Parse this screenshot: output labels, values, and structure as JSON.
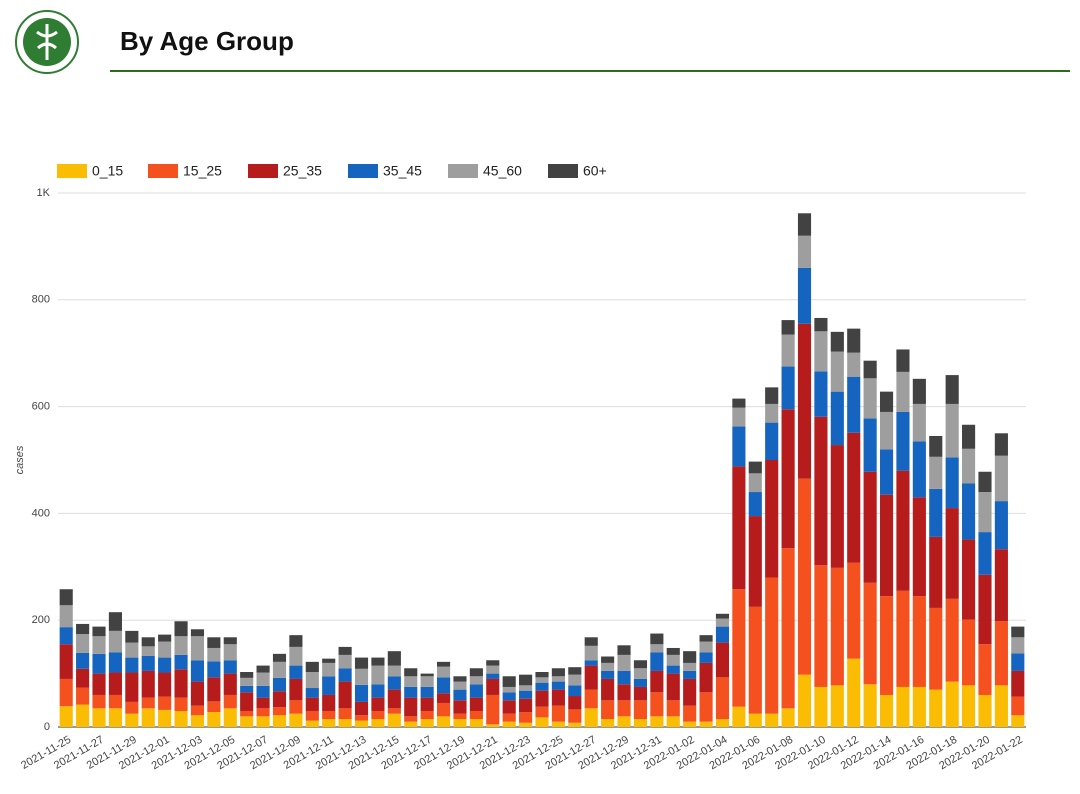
{
  "chart_data": {
    "type": "stacked_bar",
    "title": "By Age Group",
    "y_label": "cases",
    "categories": [
      "2021-11-25",
      null,
      "2021-11-27",
      null,
      "2021-11-29",
      null,
      "2021-12-01",
      null,
      "2021-12-03",
      null,
      "2021-12-05",
      null,
      "2021-12-07",
      null,
      "2021-12-09",
      null,
      "2021-12-11",
      null,
      "2021-12-13",
      null,
      "2021-12-15",
      null,
      "2021-12-17",
      null,
      "2021-12-19",
      null,
      "2021-12-21",
      null,
      "2021-12-23",
      null,
      "2021-12-25",
      null,
      "2021-12-27",
      null,
      "2021-12-29",
      null,
      "2021-12-31",
      null,
      "2022-01-02",
      null,
      "2022-01-04",
      null,
      "2022-01-06",
      null,
      "2022-01-08",
      null,
      "2022-01-10",
      null,
      "2022-01-12",
      null,
      "2022-01-14",
      null,
      "2022-01-16",
      null,
      "2022-01-18",
      null,
      "2022-01-20",
      null,
      "2022-01-22"
    ],
    "series": [
      {
        "name": "0_15",
        "color": "#fbbc04",
        "values": [
          39,
          42,
          35,
          35,
          25,
          35,
          32,
          30,
          22,
          28,
          35,
          20,
          20,
          22,
          25,
          12,
          15,
          15,
          12,
          15,
          25,
          10,
          15,
          20,
          15,
          15,
          5,
          10,
          8,
          18,
          10,
          8,
          35,
          15,
          20,
          15,
          20,
          20,
          10,
          10,
          15,
          38,
          25,
          25,
          35,
          98,
          75,
          78,
          128,
          80,
          60,
          75,
          75,
          70,
          85,
          78,
          60,
          78,
          22
        ]
      },
      {
        "name": "15_25",
        "color": "#f4511e",
        "values": [
          51,
          32,
          25,
          25,
          22,
          20,
          25,
          25,
          18,
          20,
          25,
          10,
          15,
          15,
          25,
          18,
          15,
          20,
          10,
          15,
          10,
          10,
          15,
          25,
          10,
          15,
          55,
          15,
          20,
          20,
          30,
          25,
          35,
          35,
          30,
          35,
          45,
          30,
          30,
          55,
          78,
          220,
          200,
          255,
          300,
          367,
          228,
          220,
          180,
          190,
          185,
          180,
          170,
          153,
          155,
          123,
          95,
          120,
          35
        ]
      },
      {
        "name": "25_35",
        "color": "#b71c1c",
        "values": [
          65,
          35,
          40,
          42,
          55,
          50,
          45,
          53,
          45,
          45,
          40,
          35,
          20,
          30,
          40,
          25,
          30,
          50,
          25,
          25,
          35,
          35,
          25,
          18,
          25,
          25,
          30,
          25,
          25,
          30,
          30,
          25,
          45,
          40,
          30,
          25,
          40,
          50,
          50,
          55,
          65,
          230,
          170,
          220,
          260,
          290,
          278,
          230,
          243,
          208,
          190,
          225,
          185,
          133,
          170,
          150,
          130,
          135,
          48
        ]
      },
      {
        "name": "35_45",
        "color": "#1565c0",
        "values": [
          32,
          30,
          37,
          38,
          28,
          28,
          28,
          27,
          40,
          30,
          25,
          12,
          22,
          25,
          25,
          18,
          35,
          25,
          32,
          25,
          25,
          20,
          20,
          30,
          20,
          25,
          10,
          15,
          15,
          15,
          15,
          20,
          10,
          15,
          25,
          15,
          35,
          15,
          15,
          20,
          30,
          75,
          45,
          70,
          80,
          105,
          85,
          100,
          105,
          100,
          85,
          110,
          105,
          90,
          95,
          105,
          80,
          90,
          33
        ]
      },
      {
        "name": "45_60",
        "color": "#9e9e9e",
        "values": [
          41,
          35,
          33,
          40,
          28,
          18,
          30,
          35,
          45,
          25,
          30,
          15,
          25,
          30,
          35,
          30,
          25,
          25,
          30,
          35,
          20,
          20,
          20,
          20,
          15,
          15,
          15,
          10,
          10,
          10,
          10,
          20,
          27,
          15,
          30,
          20,
          15,
          20,
          15,
          20,
          15,
          35,
          35,
          35,
          60,
          60,
          75,
          75,
          45,
          75,
          70,
          75,
          70,
          60,
          100,
          65,
          75,
          85,
          30
        ]
      },
      {
        "name": "60+",
        "color": "#424242",
        "values": [
          30,
          19,
          18,
          35,
          22,
          17,
          13,
          28,
          13,
          20,
          13,
          11,
          13,
          15,
          22,
          19,
          8,
          15,
          21,
          15,
          27,
          15,
          5,
          9,
          10,
          15,
          10,
          20,
          20,
          10,
          15,
          14,
          16,
          12,
          18,
          15,
          20,
          13,
          22,
          12,
          9,
          17,
          22,
          31,
          27,
          42,
          25,
          37,
          45,
          33,
          38,
          42,
          47,
          39,
          54,
          45,
          38,
          42,
          20
        ]
      }
    ],
    "ylim": [
      0,
      1000
    ],
    "yticks": [
      0,
      200,
      400,
      600,
      800,
      {
        "value": 1000,
        "label": "1K"
      }
    ],
    "grid": true,
    "legend": "top"
  }
}
